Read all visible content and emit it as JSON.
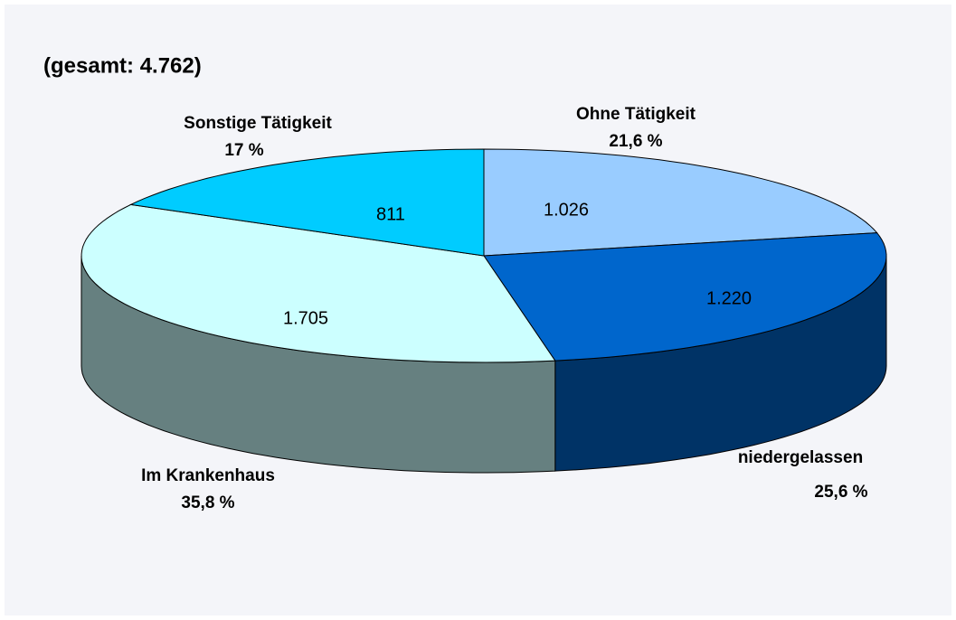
{
  "chart_data": {
    "type": "pie3d",
    "title": "(gesamt: 4.762)",
    "categories": [
      "Ohne Tätigkeit",
      "niedergelassen",
      "Im Krankenhaus",
      "Sonstige Tätigkeit"
    ],
    "values": [
      1026,
      1220,
      1705,
      811
    ],
    "value_labels": [
      "1.026",
      "1.220",
      "1.705",
      "811"
    ],
    "percentages": [
      21.6,
      25.6,
      35.8,
      17
    ],
    "percentage_labels": [
      "21,6 %",
      "25,6 %",
      "35,8 %",
      "17 %"
    ],
    "colors": [
      "#99ccff",
      "#0066cc",
      "#ccffff",
      "#00ccff"
    ],
    "side_colors": [
      "#6699cc",
      "#003366",
      "#668080",
      "#0099cc"
    ]
  }
}
